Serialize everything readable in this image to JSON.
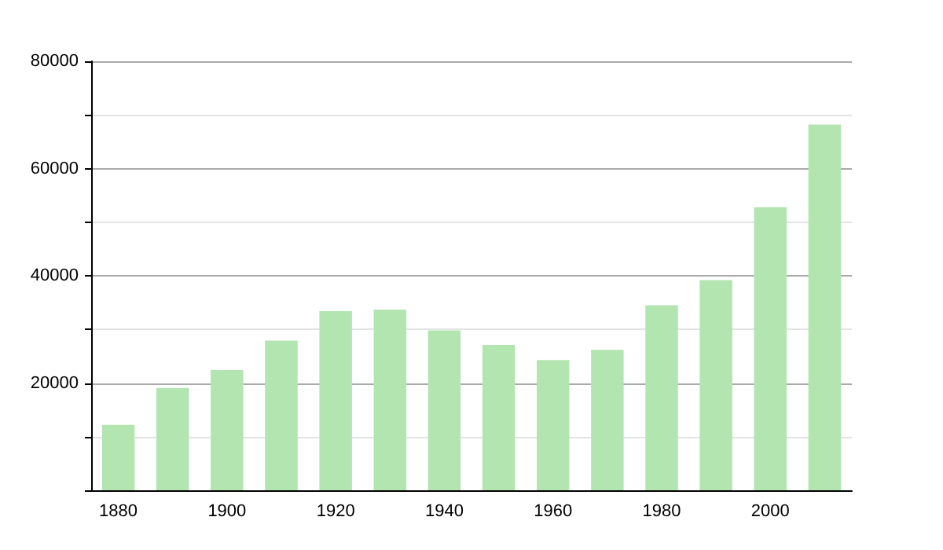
{
  "chart_data": {
    "type": "bar",
    "categories": [
      "1880",
      null,
      "1900",
      null,
      "1920",
      null,
      "1940",
      null,
      "1960",
      null,
      "1980",
      null,
      "2000",
      null
    ],
    "values": [
      12200,
      19100,
      22400,
      27900,
      33400,
      33700,
      29800,
      27100,
      24300,
      26200,
      34500,
      39200,
      52800,
      68200
    ],
    "color": "#b3e5b0",
    "ylim": [
      0,
      80000
    ],
    "yticks": [
      {
        "value": 0,
        "label": null
      },
      {
        "value": 10000,
        "label": null
      },
      20000,
      {
        "value": 30000,
        "label": null
      },
      40000,
      {
        "value": 50000,
        "label": null
      },
      60000,
      {
        "value": 70000,
        "label": null
      },
      80000
    ],
    "grid": "y"
  }
}
